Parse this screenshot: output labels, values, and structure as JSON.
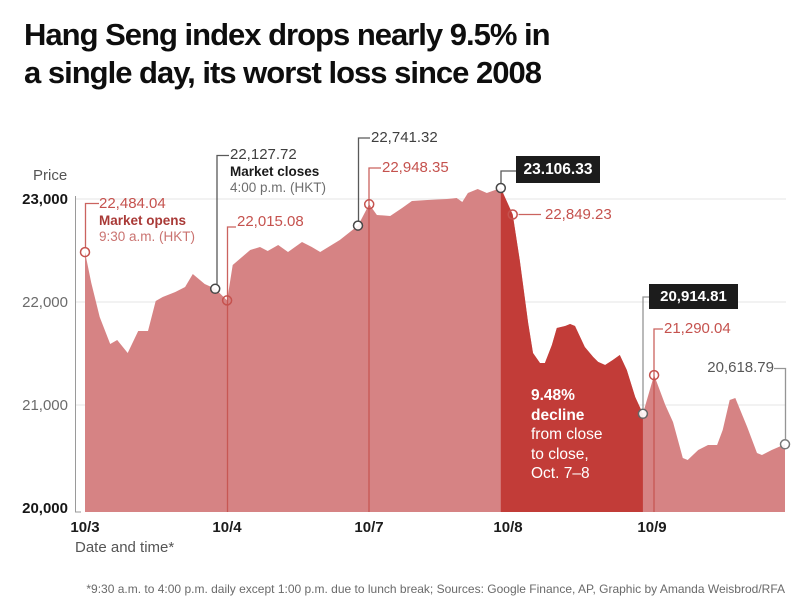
{
  "title": {
    "line1": "Hang Seng index drops nearly 9.5% in",
    "line2": "a single day, its worst loss since 2008"
  },
  "colors": {
    "area_light": "#d68384",
    "area_dark": "#c23c38",
    "annotation_red": "#c5524e",
    "annotation_dark": "#474747",
    "annotation_gray": "#8a8a8a",
    "grid": "#e5e5e5",
    "axis": "#9a9a9a",
    "black_box_bg": "#1c1c1c"
  },
  "axis": {
    "price_label": "Price",
    "x_axis_label": "Date and time*",
    "y_ticks": [
      "23,000",
      "22,000",
      "21,000",
      "20,000"
    ],
    "x_ticks": [
      "10/3",
      "10/4",
      "10/7",
      "10/8",
      "10/9"
    ]
  },
  "annotations": {
    "open_103_value": "22,484.04",
    "open_103_label": "Market opens",
    "open_103_time": "9:30 a.m. (HKT)",
    "close_103_value": "22,127.72",
    "close_103_label": "Market closes",
    "close_103_time": "4:00 p.m. (HKT)",
    "open_104_value": "22,015.08",
    "close_104_value": "22,741.32",
    "open_107_value": "22,948.35",
    "close_107_value": "23.106.33",
    "open_108_value": "22,849.23",
    "close_108_value": "20,914.81",
    "open_109_value": "21,290.04",
    "close_109_value": "20,618.79",
    "decline_pct": "9.48%",
    "decline_word": "decline",
    "decline_l3": "from close",
    "decline_l4": "to close,",
    "decline_l5": "Oct. 7–8"
  },
  "footer": "*9:30 a.m. to 4:00 p.m. daily except 1:00 p.m. due to lunch break; Sources: Google Finance, AP, Graphic by Amanda Weisbrod/RFA",
  "chart_data": {
    "type": "area",
    "ylabel": "Price",
    "xlabel": "Date and time*",
    "ylim": [
      20000,
      23000
    ],
    "y_top_value": 23000,
    "grid": "horizontal",
    "categories": [
      "10/3",
      "10/4",
      "10/7",
      "10/8",
      "10/9"
    ],
    "key_points": {
      "open_103": 22484.04,
      "close_103": 22127.72,
      "open_104": 22015.08,
      "close_104": 22741.32,
      "open_107": 22948.35,
      "close_107": 23106.33,
      "open_108": 22849.23,
      "close_108": 20914.81,
      "open_109": 21290.04,
      "last_109": 20618.79,
      "decline_close_to_close_pct": -9.48
    },
    "decline_region": {
      "from_f": 0.594,
      "to_f": 0.797
    },
    "days": [
      {
        "label": "10/3",
        "points": [
          [
            0.0,
            22484.04
          ],
          [
            0.009,
            22184
          ],
          [
            0.021,
            21854
          ],
          [
            0.036,
            21592
          ],
          [
            0.046,
            21631
          ],
          [
            0.061,
            21505
          ],
          [
            0.076,
            21718
          ],
          [
            0.09,
            21718
          ],
          [
            0.101,
            22010
          ],
          [
            0.111,
            22049
          ],
          [
            0.129,
            22097
          ],
          [
            0.143,
            22146
          ],
          [
            0.154,
            22272
          ],
          [
            0.171,
            22175
          ],
          [
            0.186,
            22127.72
          ]
        ]
      },
      {
        "label": "10/4",
        "points": [
          [
            0.203,
            22015.08
          ],
          [
            0.211,
            22359
          ],
          [
            0.236,
            22505
          ],
          [
            0.25,
            22534
          ],
          [
            0.261,
            22495
          ],
          [
            0.276,
            22553
          ],
          [
            0.29,
            22485
          ],
          [
            0.31,
            22583
          ],
          [
            0.324,
            22534
          ],
          [
            0.336,
            22485
          ],
          [
            0.364,
            22602
          ],
          [
            0.39,
            22741.32
          ]
        ]
      },
      {
        "label": "10/7",
        "points": [
          [
            0.406,
            22948.35
          ],
          [
            0.417,
            22845
          ],
          [
            0.436,
            22835
          ],
          [
            0.453,
            22913
          ],
          [
            0.467,
            22981
          ],
          [
            0.489,
            22990
          ],
          [
            0.517,
            23000
          ],
          [
            0.531,
            23010
          ],
          [
            0.539,
            22971
          ],
          [
            0.547,
            23058
          ],
          [
            0.561,
            23097
          ],
          [
            0.574,
            23058
          ],
          [
            0.594,
            23106.33
          ]
        ]
      },
      {
        "label": "10/8",
        "points": [
          [
            0.611,
            22849.23
          ],
          [
            0.621,
            22410
          ],
          [
            0.633,
            21800
          ],
          [
            0.64,
            21505
          ],
          [
            0.65,
            21408
          ],
          [
            0.657,
            21408
          ],
          [
            0.667,
            21583
          ],
          [
            0.674,
            21748
          ],
          [
            0.686,
            21767
          ],
          [
            0.693,
            21786
          ],
          [
            0.7,
            21767
          ],
          [
            0.714,
            21563
          ],
          [
            0.726,
            21466
          ],
          [
            0.733,
            21418
          ],
          [
            0.743,
            21388
          ],
          [
            0.754,
            21437
          ],
          [
            0.764,
            21485
          ],
          [
            0.774,
            21340
          ],
          [
            0.786,
            21078
          ],
          [
            0.797,
            20914.81
          ]
        ]
      },
      {
        "label": "10/9",
        "points": [
          [
            0.813,
            21290.04
          ],
          [
            0.829,
            21000
          ],
          [
            0.84,
            20835
          ],
          [
            0.854,
            20485
          ],
          [
            0.861,
            20466
          ],
          [
            0.876,
            20563
          ],
          [
            0.89,
            20612
          ],
          [
            0.903,
            20612
          ],
          [
            0.911,
            20757
          ],
          [
            0.921,
            21049
          ],
          [
            0.929,
            21068
          ],
          [
            0.946,
            20786
          ],
          [
            0.96,
            20534
          ],
          [
            0.967,
            20515
          ],
          [
            0.981,
            20563
          ],
          [
            1.0,
            20618.79
          ]
        ]
      }
    ]
  }
}
